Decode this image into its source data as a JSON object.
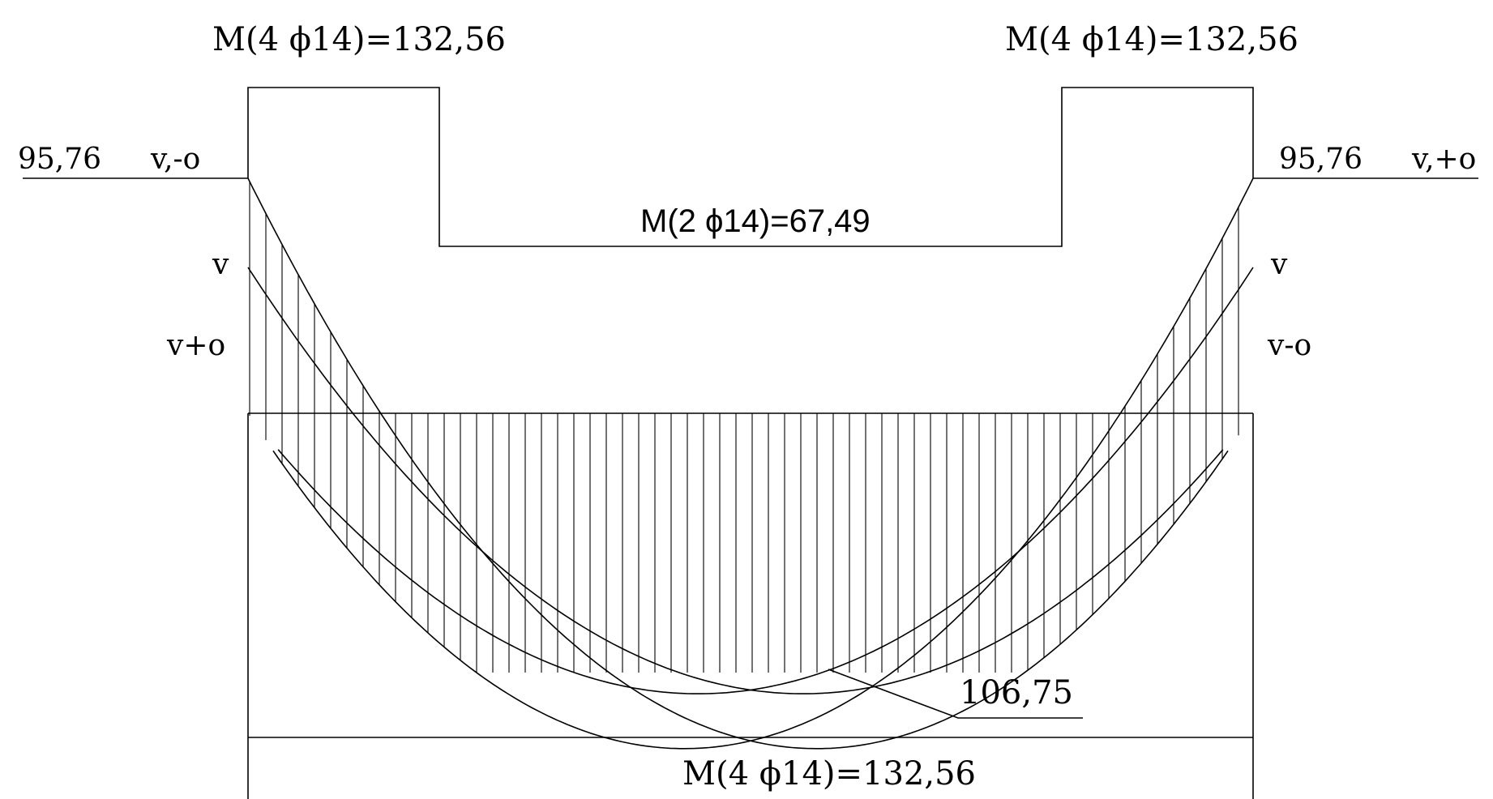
{
  "labels": {
    "top_left_moment": "M(4 ϕ14)=132,56",
    "top_right_moment": "M(4 ϕ14)=132,56",
    "mid_moment": "M(2 ϕ14)=67,49",
    "bottom_moment": "M(4 ϕ14)=132,56",
    "left_support_value": "95,76",
    "left_support_case": "v,-o",
    "right_support_value": "95,76",
    "right_support_case": "v,+o",
    "left_curve_v": "v",
    "left_curve_vo": "v+o",
    "right_curve_v": "v",
    "right_curve_vo": "v-o",
    "max_moment": "106,75"
  },
  "colors": {
    "line": "#000000",
    "background": "#ffffff"
  }
}
